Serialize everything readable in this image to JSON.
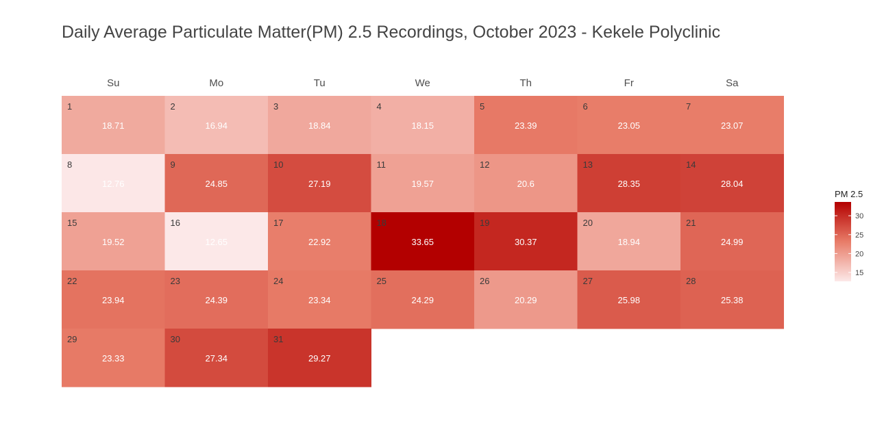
{
  "title": "Daily Average Particulate Matter(PM) 2.5 Recordings, October 2023 - Kekele Polyclinic",
  "chart_data": {
    "type": "heatmap",
    "subtype": "calendar",
    "title": "Daily Average Particulate Matter(PM) 2.5 Recordings, October 2023 - Kekele Polyclinic",
    "weekdays": [
      "Su",
      "Mo",
      "Tu",
      "We",
      "Th",
      "Fr",
      "Sa"
    ],
    "first_weekday_index": 0,
    "days": [
      1,
      2,
      3,
      4,
      5,
      6,
      7,
      8,
      9,
      10,
      11,
      12,
      13,
      14,
      15,
      16,
      17,
      18,
      19,
      20,
      21,
      22,
      23,
      24,
      25,
      26,
      27,
      28,
      29,
      30,
      31
    ],
    "values": [
      18.71,
      16.94,
      18.84,
      18.15,
      23.39,
      23.05,
      23.07,
      12.76,
      24.85,
      27.19,
      19.57,
      20.6,
      28.35,
      28.04,
      19.52,
      12.65,
      22.92,
      33.65,
      30.37,
      18.94,
      24.99,
      23.94,
      24.39,
      23.34,
      24.29,
      20.29,
      25.98,
      25.38,
      23.33,
      27.34,
      29.27
    ],
    "value_labels": [
      "18.71",
      "16.94",
      "18.84",
      "18.15",
      "23.39",
      "23.05",
      "23.07",
      "12.76",
      "24.85",
      "27.19",
      "19.57",
      "20.6",
      "28.35",
      "28.04",
      "19.52",
      "12.65",
      "22.92",
      "33.65",
      "30.37",
      "18.94",
      "24.99",
      "23.94",
      "24.39",
      "23.34",
      "24.29",
      "20.29",
      "25.98",
      "25.38",
      "23.33",
      "27.34",
      "29.27"
    ],
    "legend": {
      "title": "PM 2.5",
      "ticks": [
        15,
        20,
        25,
        30
      ],
      "tick_labels": [
        "15",
        "20",
        "25",
        "30"
      ],
      "range": [
        12.65,
        33.65
      ],
      "color_low": "#ffffff",
      "color_high": "#b30000",
      "placement": "right"
    }
  }
}
